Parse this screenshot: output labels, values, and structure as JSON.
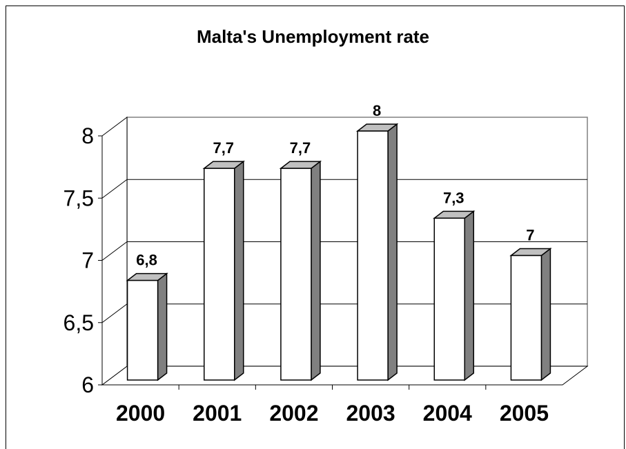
{
  "chart_data": {
    "type": "bar",
    "title": "Malta's Unemployment rate",
    "categories": [
      "2000",
      "2001",
      "2002",
      "2003",
      "2004",
      "2005"
    ],
    "values": [
      6.8,
      7.7,
      7.7,
      8,
      7.3,
      7
    ],
    "data_labels": [
      "6,8",
      "7,7",
      "7,7",
      "8",
      "7,3",
      "7"
    ],
    "y_ticks": [
      6,
      6.5,
      7,
      7.5,
      8
    ],
    "y_tick_labels": [
      "6",
      "6,5",
      "7",
      "7,5",
      "8"
    ],
    "ylim": [
      6,
      8
    ],
    "grid": true,
    "legend": "none",
    "style": "3d-column",
    "colors": {
      "bar_front": "#ffffff",
      "bar_side": "#808080",
      "bar_top": "#c0c0c0",
      "outline": "#000000"
    }
  }
}
